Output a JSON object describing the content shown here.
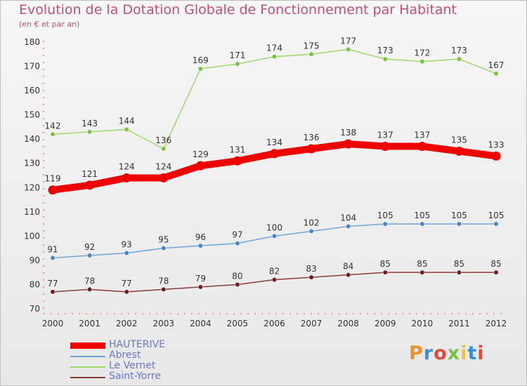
{
  "header": {
    "title": "Evolution de la Dotation Globale de Fonctionnement par Habitant",
    "subtitle": "(en € et par an)"
  },
  "logo": {
    "text": "Proxiti",
    "colors": [
      "#e8922e",
      "#3b8fd6",
      "#e24b3b",
      "#7cc142",
      "#e8c83a",
      "#3b8fd6",
      "#e24b3b"
    ]
  },
  "chart_data": {
    "type": "line",
    "title": "Evolution de la Dotation Globale de Fonctionnement par Habitant",
    "subtitle": "(en € et par an)",
    "xlabel": "",
    "ylabel": "",
    "ylim": [
      70,
      180
    ],
    "yticks": [
      70,
      80,
      90,
      100,
      110,
      120,
      130,
      140,
      150,
      160,
      170,
      180
    ],
    "x": [
      "2000",
      "2001",
      "2002",
      "2003",
      "2004",
      "2005",
      "2006",
      "2007",
      "2008",
      "2009",
      "2010",
      "2011",
      "2012"
    ],
    "grid": false,
    "legend": "bottom-left",
    "series": [
      {
        "name": "HAUTERIVE",
        "color": "#ee0000",
        "marker_color": "#ee0000",
        "label_color": "#333333",
        "emphasis": true,
        "values": [
          119,
          121,
          124,
          124,
          129,
          131,
          134,
          136,
          138,
          137,
          137,
          135,
          133
        ]
      },
      {
        "name": "Abrest",
        "color": "#6fa5d8",
        "marker_color": "#4a86c5",
        "label_color": "#333333",
        "emphasis": false,
        "values": [
          91,
          92,
          93,
          95,
          96,
          97,
          100,
          102,
          104,
          105,
          105,
          105,
          105
        ]
      },
      {
        "name": "Le Vernet",
        "color": "#9ed86b",
        "marker_color": "#7cc142",
        "label_color": "#333333",
        "emphasis": false,
        "values": [
          142,
          143,
          144,
          136,
          169,
          171,
          174,
          175,
          177,
          173,
          172,
          173,
          167
        ]
      },
      {
        "name": "Saint-Yorre",
        "color": "#8b3a3a",
        "marker_color": "#6b1f1f",
        "label_color": "#333333",
        "emphasis": false,
        "values": [
          77,
          78,
          77,
          78,
          79,
          80,
          82,
          83,
          84,
          85,
          85,
          85,
          85
        ]
      }
    ]
  }
}
